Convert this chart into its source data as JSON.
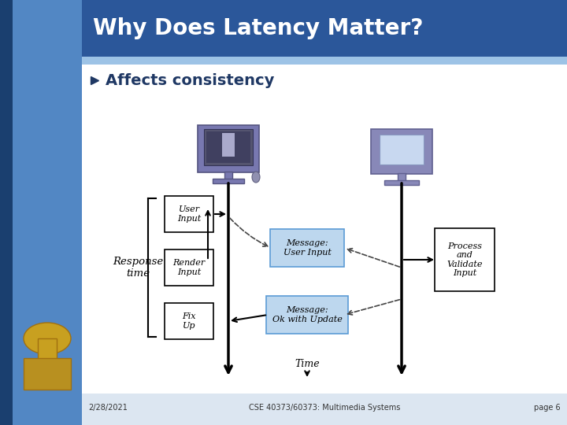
{
  "title": "Why Does Latency Matter?",
  "title_bg": "#2B579A",
  "title_color": "#FFFFFF",
  "sidebar_dark": "#1A3F6F",
  "sidebar_light": "#4A7FBF",
  "content_bg": "#FFFFFF",
  "bullet_text": "Affects consistency",
  "bullet_color": "#1F3864",
  "footer_date": "2/28/2021",
  "footer_course": "CSE 40373/60373: Multimedia Systems",
  "footer_page": "page 6",
  "response_time_text": "Response\ntime",
  "time_label": "Time"
}
